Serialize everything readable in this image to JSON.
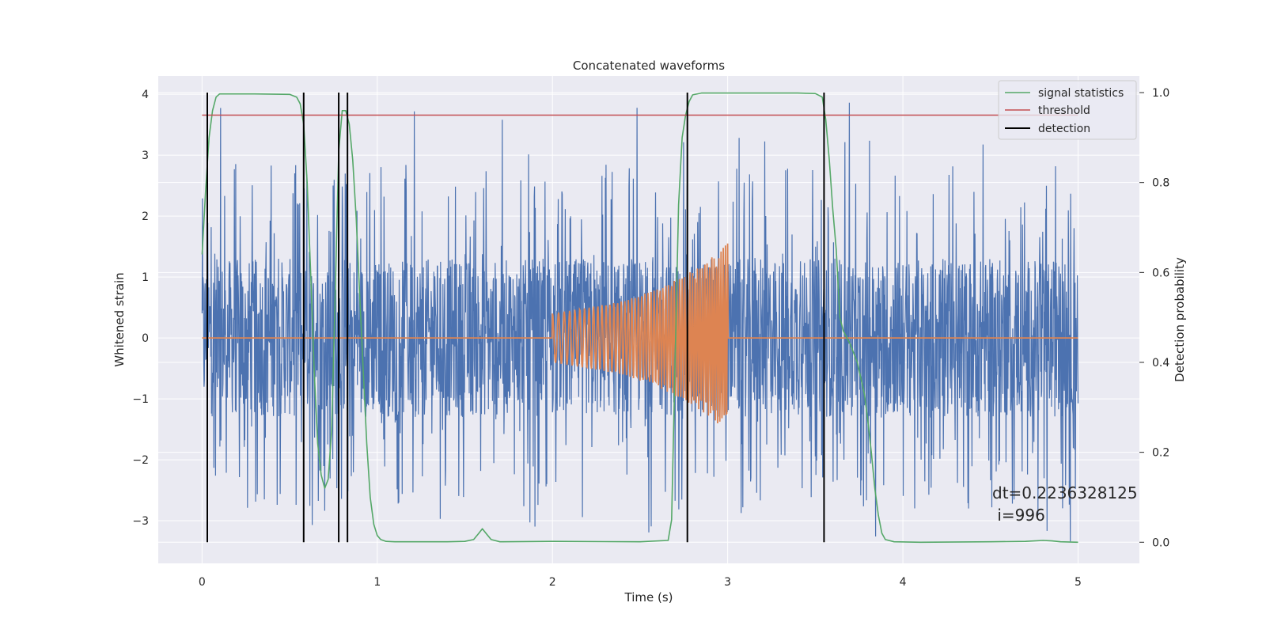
{
  "chart_data": {
    "type": "line",
    "title": "Concatenated waveforms",
    "xlabel": "Time (s)",
    "ylabel": "Whitened strain",
    "y2label": "Detection probability",
    "xlim": [
      -0.25,
      5.35
    ],
    "ylim": [
      -3.7,
      4.3
    ],
    "y2lim": [
      -0.047,
      1.037
    ],
    "xticks": [
      0,
      1,
      2,
      3,
      4,
      5
    ],
    "yticks": [
      -3,
      -2,
      -1,
      0,
      1,
      2,
      3,
      4
    ],
    "y2ticks": [
      0.0,
      0.2,
      0.4,
      0.6,
      0.8,
      1.0
    ],
    "grid": true,
    "legend_position": "top-right",
    "series": [
      {
        "name": "",
        "axis": "left",
        "color": "#4c72b0",
        "description_of_values": "noisy whitened strain",
        "x_range": [
          0,
          5
        ],
        "typical_band": [
          -1.3,
          1.0
        ],
        "peaks_max": 3.93,
        "troughs_min": -3.35
      },
      {
        "name": "",
        "axis": "left",
        "color": "#dd8452",
        "x": [
          0,
          2,
          2.1,
          2.2,
          2.3,
          2.4,
          2.5,
          2.6,
          2.7,
          2.8,
          2.9,
          3.0,
          3.001,
          5
        ],
        "envelope": [
          0,
          0.4,
          0.45,
          0.5,
          0.55,
          0.6,
          0.7,
          0.8,
          0.95,
          1.1,
          1.3,
          1.55,
          0,
          0
        ]
      },
      {
        "name": "signal statistics",
        "axis": "right",
        "color": "#55a868",
        "x": [
          0.0,
          0.02,
          0.04,
          0.06,
          0.08,
          0.1,
          0.15,
          0.3,
          0.5,
          0.54,
          0.56,
          0.58,
          0.6,
          0.62,
          0.64,
          0.66,
          0.68,
          0.7,
          0.72,
          0.74,
          0.76,
          0.78,
          0.8,
          0.82,
          0.84,
          0.86,
          0.88,
          0.9,
          0.92,
          0.94,
          0.96,
          0.98,
          1.0,
          1.02,
          1.05,
          1.1,
          1.4,
          1.5,
          1.55,
          1.58,
          1.6,
          1.62,
          1.65,
          1.7,
          2.0,
          2.5,
          2.66,
          2.68,
          2.7,
          2.72,
          2.74,
          2.76,
          2.78,
          2.8,
          2.85,
          3.0,
          3.4,
          3.5,
          3.54,
          3.56,
          3.58,
          3.6,
          3.62,
          3.64,
          3.66,
          3.7,
          3.74,
          3.78,
          3.8,
          3.82,
          3.84,
          3.86,
          3.88,
          3.9,
          3.95,
          4.1,
          4.5,
          4.7,
          4.8,
          4.85,
          4.9,
          5.0
        ],
        "values": [
          0.64,
          0.78,
          0.9,
          0.96,
          0.99,
          0.997,
          0.997,
          0.997,
          0.996,
          0.99,
          0.975,
          0.93,
          0.8,
          0.6,
          0.38,
          0.22,
          0.15,
          0.12,
          0.14,
          0.25,
          0.55,
          0.87,
          0.96,
          0.96,
          0.93,
          0.85,
          0.72,
          0.55,
          0.38,
          0.22,
          0.1,
          0.04,
          0.015,
          0.006,
          0.002,
          0.001,
          0.001,
          0.002,
          0.006,
          0.02,
          0.03,
          0.02,
          0.006,
          0.001,
          0.002,
          0.001,
          0.004,
          0.05,
          0.4,
          0.75,
          0.9,
          0.95,
          0.98,
          0.995,
          0.999,
          0.999,
          0.999,
          0.998,
          0.99,
          0.94,
          0.85,
          0.74,
          0.65,
          0.5,
          0.47,
          0.44,
          0.4,
          0.33,
          0.27,
          0.2,
          0.12,
          0.06,
          0.02,
          0.006,
          0.001,
          0.0,
          0.001,
          0.002,
          0.004,
          0.003,
          0.001,
          0.0
        ]
      },
      {
        "name": "threshold",
        "axis": "right",
        "color": "#c44e52",
        "x": [
          0,
          5
        ],
        "values": [
          0.95,
          0.95
        ]
      },
      {
        "name": "detection",
        "axis": "right",
        "color": "#000000",
        "type": "vlines",
        "x": [
          0.03,
          0.58,
          0.78,
          0.83,
          2.77,
          3.55
        ],
        "ymin": 0.0,
        "ymax": 1.0
      }
    ],
    "annotation": {
      "line1": "dt=0.2236328125",
      "line2": " i=996"
    }
  }
}
